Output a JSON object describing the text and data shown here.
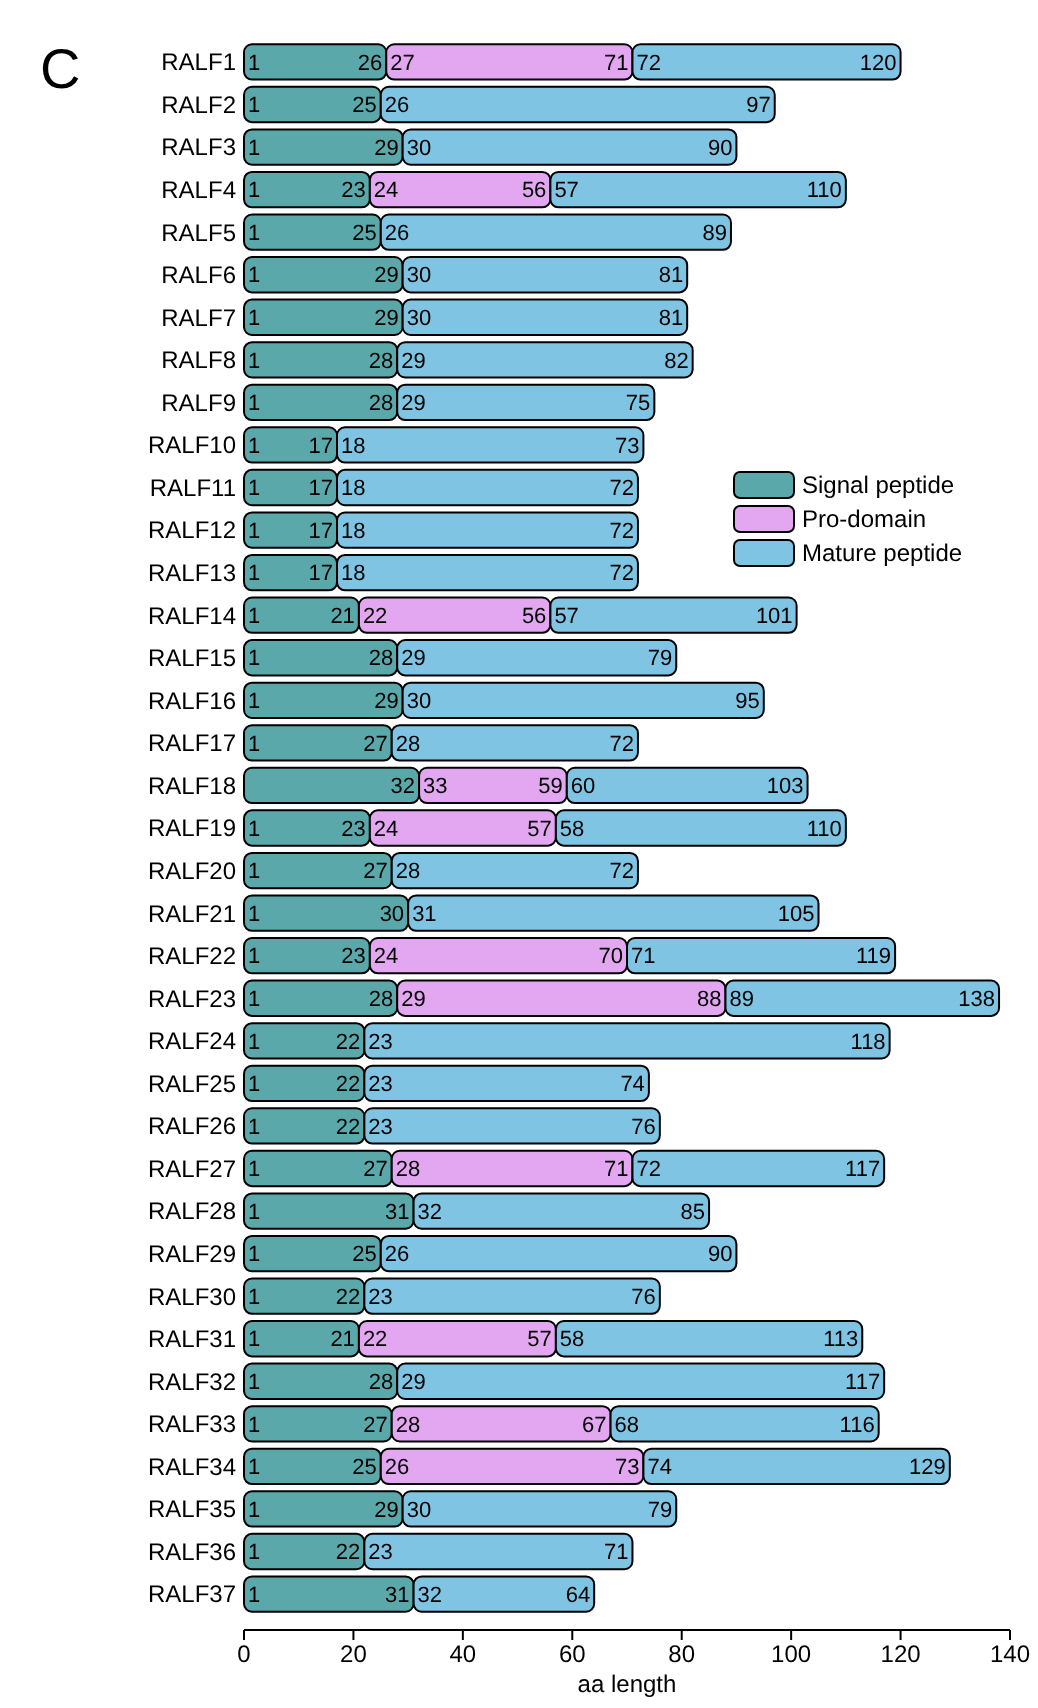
{
  "chart_data": {
    "type": "bar",
    "orientation": "horizontal",
    "stacked": true,
    "title": "C",
    "xlabel": "aa length",
    "legend": "right",
    "categories": [
      "RALF1",
      "RALF2",
      "RALF3",
      "RALF4",
      "RALF5",
      "RALF6",
      "RALF7",
      "RALF8",
      "RALF9",
      "RALF10",
      "RALF11",
      "RALF12",
      "RALF13",
      "RALF14",
      "RALF15",
      "RALF16",
      "RALF17",
      "RALF18",
      "RALF19",
      "RALF20",
      "RALF21",
      "RALF22",
      "RALF23",
      "RALF24",
      "RALF25",
      "RALF26",
      "RALF27",
      "RALF28",
      "RALF29",
      "RALF30",
      "RALF31",
      "RALF32",
      "RALF33",
      "RALF34",
      "RALF35",
      "RALF36",
      "RALF37"
    ],
    "xlim": [
      0,
      140
    ],
    "xticks": [
      0,
      20,
      40,
      60,
      80,
      100,
      120,
      140
    ],
    "series": [
      {
        "name": "Signal peptide",
        "color": "#5ba8ab",
        "values": [
          26,
          25,
          29,
          23,
          25,
          29,
          29,
          28,
          28,
          17,
          17,
          17,
          17,
          21,
          28,
          29,
          27,
          32,
          23,
          27,
          30,
          23,
          28,
          22,
          22,
          22,
          27,
          31,
          25,
          22,
          21,
          28,
          27,
          25,
          29,
          22,
          31
        ],
        "value_labels": [
          [
            "1",
            "26"
          ],
          [
            "1",
            "25"
          ],
          [
            "1",
            "29"
          ],
          [
            "1",
            "23"
          ],
          [
            "1",
            "25"
          ],
          [
            "1",
            "29"
          ],
          [
            "1",
            "29"
          ],
          [
            "1",
            "28"
          ],
          [
            "1",
            "28"
          ],
          [
            "1",
            "17"
          ],
          [
            "1",
            "17"
          ],
          [
            "1",
            "17"
          ],
          [
            "1",
            "17"
          ],
          [
            "1",
            "21"
          ],
          [
            "1",
            "28"
          ],
          [
            "1",
            "29"
          ],
          [
            "1",
            "27"
          ],
          [
            null,
            "32"
          ],
          [
            "1",
            "23"
          ],
          [
            "1",
            "27"
          ],
          [
            "1",
            "30"
          ],
          [
            "1",
            "23"
          ],
          [
            "1",
            "28"
          ],
          [
            "1",
            "22"
          ],
          [
            "1",
            "22"
          ],
          [
            "1",
            "22"
          ],
          [
            "1",
            "27"
          ],
          [
            "1",
            "31"
          ],
          [
            "1",
            "25"
          ],
          [
            "1",
            "22"
          ],
          [
            "1",
            "21"
          ],
          [
            "1",
            "28"
          ],
          [
            "1",
            "27"
          ],
          [
            "1",
            "25"
          ],
          [
            "1",
            "29"
          ],
          [
            "1",
            "22"
          ],
          [
            "1",
            "31"
          ]
        ]
      },
      {
        "name": "Pro-domain",
        "color": "#e3a6f0",
        "values": [
          45,
          null,
          null,
          33,
          null,
          null,
          null,
          null,
          null,
          null,
          null,
          null,
          null,
          35,
          null,
          null,
          null,
          27,
          34,
          null,
          null,
          47,
          60,
          null,
          null,
          null,
          44,
          null,
          null,
          null,
          36,
          null,
          40,
          48,
          null,
          null,
          null
        ],
        "value_labels": [
          [
            "27",
            "71"
          ],
          null,
          null,
          [
            "24",
            "56"
          ],
          null,
          null,
          null,
          null,
          null,
          null,
          null,
          null,
          null,
          [
            "22",
            "56"
          ],
          null,
          null,
          null,
          [
            "33",
            "59"
          ],
          [
            "24",
            "57"
          ],
          null,
          null,
          [
            "24",
            "70"
          ],
          [
            "29",
            "88"
          ],
          null,
          null,
          null,
          [
            "28",
            "71"
          ],
          null,
          null,
          null,
          [
            "22",
            "57"
          ],
          null,
          [
            "28",
            "67"
          ],
          [
            "26",
            "73"
          ],
          null,
          null,
          null
        ]
      },
      {
        "name": "Mature peptide",
        "color": "#7fc4e2",
        "values": [
          49,
          72,
          61,
          54,
          64,
          52,
          52,
          54,
          47,
          56,
          55,
          55,
          55,
          45,
          51,
          66,
          45,
          44,
          53,
          45,
          75,
          49,
          50,
          96,
          52,
          54,
          46,
          54,
          65,
          54,
          56,
          89,
          49,
          56,
          50,
          49,
          33
        ],
        "value_labels": [
          [
            "72",
            "120"
          ],
          [
            "26",
            "97"
          ],
          [
            "30",
            "90"
          ],
          [
            "57",
            "110"
          ],
          [
            "26",
            "89"
          ],
          [
            "30",
            "81"
          ],
          [
            "30",
            "81"
          ],
          [
            "29",
            "82"
          ],
          [
            "29",
            "75"
          ],
          [
            "18",
            "73"
          ],
          [
            "18",
            "72"
          ],
          [
            "18",
            "72"
          ],
          [
            "18",
            "72"
          ],
          [
            "57",
            "101"
          ],
          [
            "29",
            "79"
          ],
          [
            "30",
            "95"
          ],
          [
            "28",
            "72"
          ],
          [
            "60",
            "103"
          ],
          [
            "58",
            "110"
          ],
          [
            "28",
            "72"
          ],
          [
            "31",
            "105"
          ],
          [
            "71",
            "119"
          ],
          [
            "89",
            "138"
          ],
          [
            "23",
            "118"
          ],
          [
            "23",
            "74"
          ],
          [
            "23",
            "76"
          ],
          [
            "72",
            "117"
          ],
          [
            "32",
            "85"
          ],
          [
            "26",
            "90"
          ],
          [
            "23",
            "76"
          ],
          [
            "58",
            "113"
          ],
          [
            "29",
            "117"
          ],
          [
            "68",
            "116"
          ],
          [
            "74",
            "129"
          ],
          [
            "30",
            "79"
          ],
          [
            "23",
            "71"
          ],
          [
            "32",
            "64"
          ]
        ]
      }
    ]
  }
}
